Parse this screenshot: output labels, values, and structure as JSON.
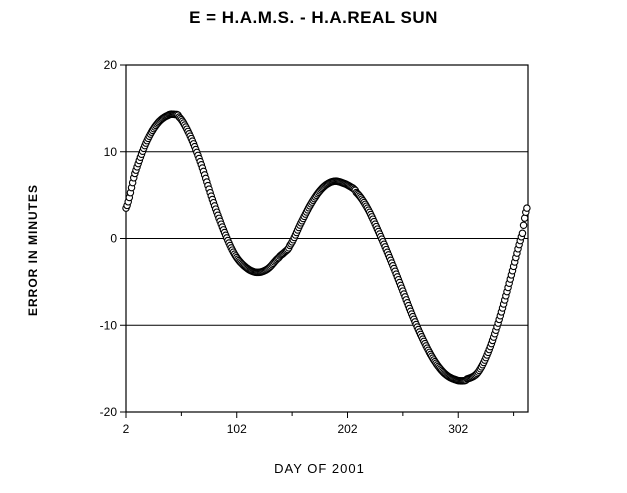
{
  "chart_data": {
    "type": "scatter",
    "title": "E = H.A.M.S. - H.A.REAL SUN",
    "xlabel": "DAY OF 2001",
    "ylabel": "ERROR IN MINUTES",
    "xlim": [
      2,
      365
    ],
    "ylim": [
      -20,
      20
    ],
    "x_ticks": [
      "2",
      "102",
      "202",
      "302"
    ],
    "y_ticks": [
      "20",
      "10",
      "0",
      "-10",
      "-20"
    ],
    "grid": "horizontal lines at each y tick",
    "marker": "open circle",
    "series": [
      {
        "x": [
          2,
          10,
          20,
          30,
          40,
          46,
          50,
          60,
          70,
          80,
          90,
          100,
          110,
          120,
          130,
          140,
          145,
          150,
          160,
          170,
          180,
          190,
          200,
          207,
          210,
          220,
          230,
          240,
          250,
          260,
          270,
          280,
          290,
          300,
          307,
          310,
          320,
          330,
          340,
          350,
          360,
          364
        ],
        "y": [
          3.5,
          7.5,
          11,
          13.2,
          14.2,
          14.3,
          14,
          11.8,
          8.5,
          4.5,
          1,
          -1.8,
          -3.3,
          -3.9,
          -3.5,
          -2.2,
          -1.6,
          -0.8,
          1.8,
          4.2,
          5.9,
          6.6,
          6.3,
          5.8,
          5.3,
          3.5,
          0.8,
          -2.2,
          -5.4,
          -8.7,
          -11.6,
          -14,
          -15.6,
          -16.3,
          -16.4,
          -16.2,
          -15.4,
          -12.8,
          -8.9,
          -4.2,
          0.6,
          3.5
        ]
      }
    ]
  }
}
